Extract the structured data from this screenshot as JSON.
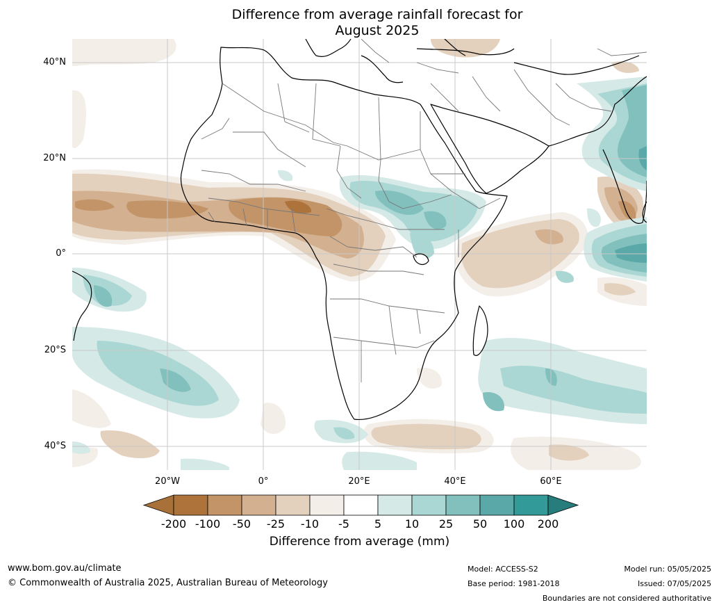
{
  "title_line1": "Difference from average rainfall forecast for",
  "title_line2": "August 2025",
  "lat_labels": [
    "40°N",
    "20°N",
    "0°",
    "20°S",
    "40°S"
  ],
  "lon_labels": [
    "20°W",
    "0°",
    "20°E",
    "40°E",
    "60°E"
  ],
  "legend": {
    "title": "Difference from average (mm)",
    "labels": [
      "-200",
      "-100",
      "-50",
      "-25",
      "-10",
      "-5",
      "5",
      "10",
      "25",
      "50",
      "100",
      "200"
    ],
    "colors": [
      "#a8713a",
      "#ae733b",
      "#c29468",
      "#d3b08f",
      "#e3d0bd",
      "#f3eee8",
      "#ffffff",
      "#d5e9e7",
      "#aad7d4",
      "#82c0be",
      "#5aa9a8",
      "#329a98",
      "#267d7b"
    ]
  },
  "footer": {
    "website": "www.bom.gov.au/climate",
    "copyright": "© Commonwealth of Australia 2025, Australian Bureau of Meteorology",
    "model": "Model: ACCESS-S2",
    "base_period": "Base period: 1981-2018",
    "model_run": "Model run: 05/05/2025",
    "issued": "Issued: 07/05/2025",
    "disclaimer": "Boundaries are not considered authoritative"
  }
}
